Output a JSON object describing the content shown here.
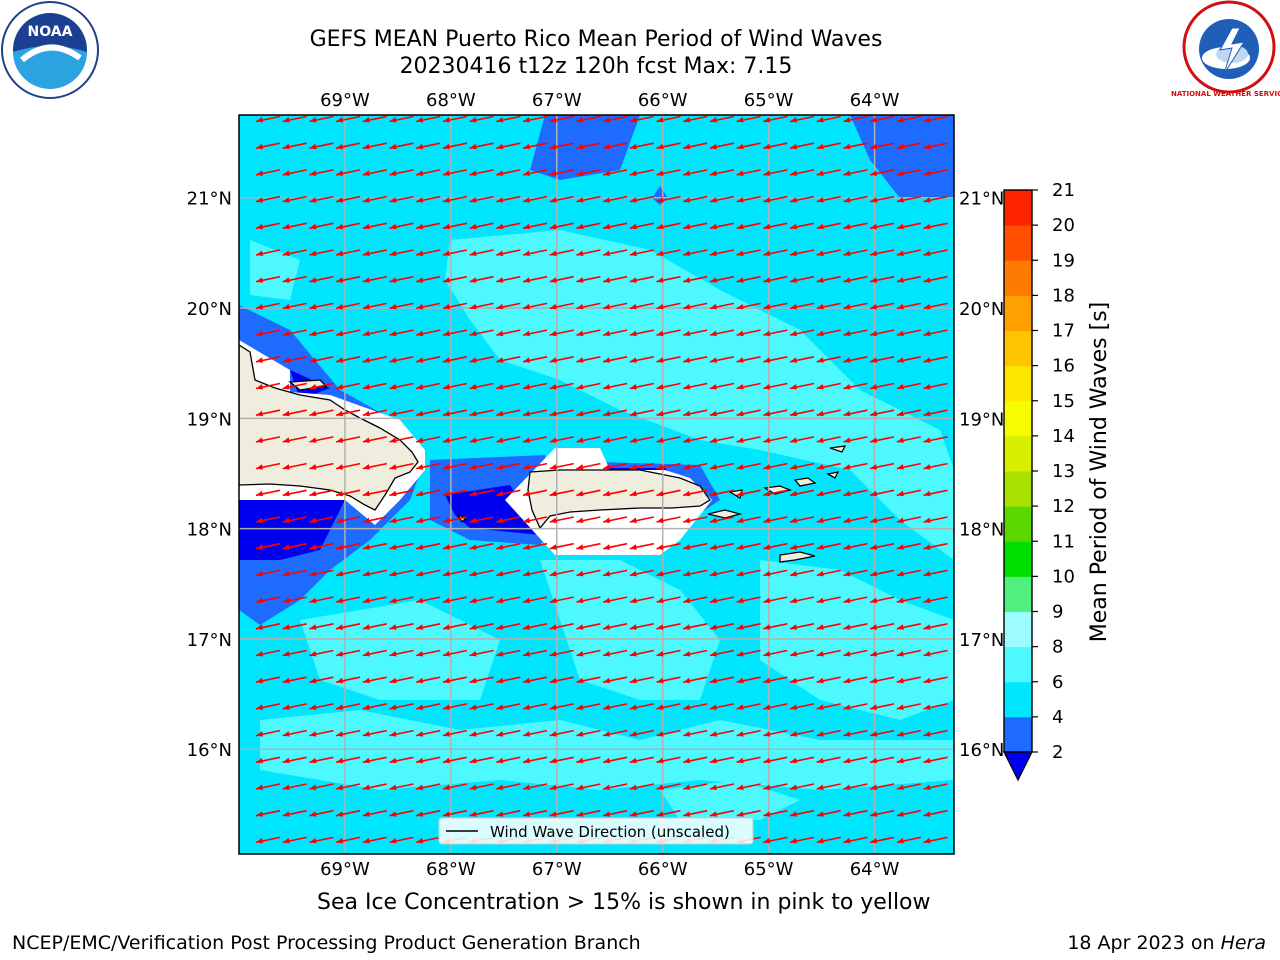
{
  "title": {
    "line1": "GEFS MEAN Puerto Rico Mean Period of Wind Waves",
    "line2": "20230416 t12z 120h fcst   Max: 7.15"
  },
  "logos": {
    "left": "NOAA",
    "right": "NATIONAL WEATHER SERVICE"
  },
  "subtitle": "Sea Ice Concentration > 15% is shown in pink to yellow",
  "credit_left": "NCEP/EMC/Verification Post Processing Product Generation Branch",
  "credit_right_date": "18 Apr 2023 on",
  "credit_right_host": "Hera",
  "legend": {
    "label": "Wind Wave Direction (unscaled)"
  },
  "map": {
    "lon_ticks": [
      "69°W",
      "68°W",
      "67°W",
      "66°W",
      "65°W",
      "64°W"
    ],
    "lat_ticks": [
      "21°N",
      "20°N",
      "19°N",
      "18°N",
      "17°N",
      "16°N"
    ],
    "lon_values": [
      -69,
      -68,
      -67,
      -66,
      -65,
      -64
    ],
    "lat_values": [
      21,
      20,
      19,
      18,
      17,
      16
    ],
    "extent": {
      "lon_min": -70,
      "lon_max": -63.25,
      "lat_min": 15.05,
      "lat_max": 21.75
    },
    "wave_direction": "WSW",
    "colors": {
      "land": "#efeddd",
      "coast": "#000000",
      "arrow": "#ff0000",
      "grid": "#b0b0b0"
    }
  },
  "colorbar": {
    "label": "Mean Period of Wind Waves [s]",
    "ticks": [
      2,
      4,
      6,
      8,
      9,
      10,
      11,
      12,
      13,
      14,
      15,
      16,
      17,
      18,
      19,
      20,
      21
    ],
    "colors": [
      "#1e6cff",
      "#00e6ff",
      "#4df9ff",
      "#9cfcff",
      "#50f080",
      "#00e000",
      "#5ad800",
      "#a8e000",
      "#d8f000",
      "#f8fc00",
      "#ffe600",
      "#ffc400",
      "#ffa000",
      "#ff7a00",
      "#ff5000",
      "#ff2400"
    ],
    "under_color": "#0000f0"
  }
}
